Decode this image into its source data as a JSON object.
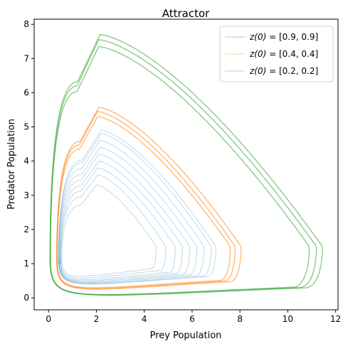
{
  "chart_data": {
    "type": "line",
    "title": "Attractor",
    "xlabel": "Prey Population",
    "ylabel": "Predator Population",
    "xlim": [
      -0.6,
      12.1
    ],
    "ylim": [
      -0.35,
      8.15
    ],
    "xticks": [
      0,
      2,
      4,
      6,
      8,
      10,
      12
    ],
    "yticks": [
      0,
      1,
      2,
      3,
      4,
      5,
      6,
      7,
      8
    ],
    "grid": false,
    "legend_position": "top-right",
    "series": [
      {
        "name": "z(0) = [0.9, 0.9]",
        "label_main": "z(0)",
        "label_rest": " = [0.9, 0.9]",
        "color": "#1f77b4",
        "loops": [
          {
            "xmin": 0.55,
            "xmax": 4.5,
            "ymin": 0.6,
            "ymax": 3.3,
            "peakx": 2.0
          },
          {
            "xmin": 0.52,
            "xmax": 4.9,
            "ymin": 0.55,
            "ymax": 3.6,
            "peakx": 2.05
          },
          {
            "xmin": 0.5,
            "xmax": 5.3,
            "ymin": 0.5,
            "ymax": 3.8,
            "peakx": 2.05
          },
          {
            "xmin": 0.48,
            "xmax": 5.6,
            "ymin": 0.47,
            "ymax": 4.0,
            "peakx": 2.1
          },
          {
            "xmin": 0.46,
            "xmax": 5.9,
            "ymin": 0.44,
            "ymax": 4.2,
            "peakx": 2.1
          },
          {
            "xmin": 0.44,
            "xmax": 6.2,
            "ymin": 0.42,
            "ymax": 4.4,
            "peakx": 2.15
          },
          {
            "xmin": 0.43,
            "xmax": 6.5,
            "ymin": 0.4,
            "ymax": 4.6,
            "peakx": 2.15
          },
          {
            "xmin": 0.42,
            "xmax": 6.8,
            "ymin": 0.38,
            "ymax": 4.8,
            "peakx": 2.2
          },
          {
            "xmin": 0.42,
            "xmax": 7.0,
            "ymin": 0.37,
            "ymax": 4.9,
            "peakx": 2.2
          }
        ]
      },
      {
        "name": "z(0) = [0.4, 0.4]",
        "label_main": "z(0)",
        "label_rest": " = [0.4, 0.4]",
        "color": "#ff7f0e",
        "loops": [
          {
            "xmin": 0.36,
            "xmax": 7.6,
            "ymin": 0.26,
            "ymax": 5.3,
            "peakx": 2.05
          },
          {
            "xmin": 0.35,
            "xmax": 7.8,
            "ymin": 0.24,
            "ymax": 5.45,
            "peakx": 2.05
          },
          {
            "xmin": 0.34,
            "xmax": 8.05,
            "ymin": 0.22,
            "ymax": 5.57,
            "peakx": 2.1
          }
        ]
      },
      {
        "name": "z(0) = [0.2, 0.2]",
        "label_main": "z(0)",
        "label_rest": " = [0.2, 0.2]",
        "color": "#2ca02c",
        "loops": [
          {
            "xmin": 0.08,
            "xmax": 10.9,
            "ymin": 0.06,
            "ymax": 7.35,
            "peakx": 2.1
          },
          {
            "xmin": 0.07,
            "xmax": 11.2,
            "ymin": 0.05,
            "ymax": 7.55,
            "peakx": 2.1
          },
          {
            "xmin": 0.06,
            "xmax": 11.45,
            "ymin": 0.04,
            "ymax": 7.7,
            "peakx": 2.15
          }
        ]
      }
    ]
  }
}
